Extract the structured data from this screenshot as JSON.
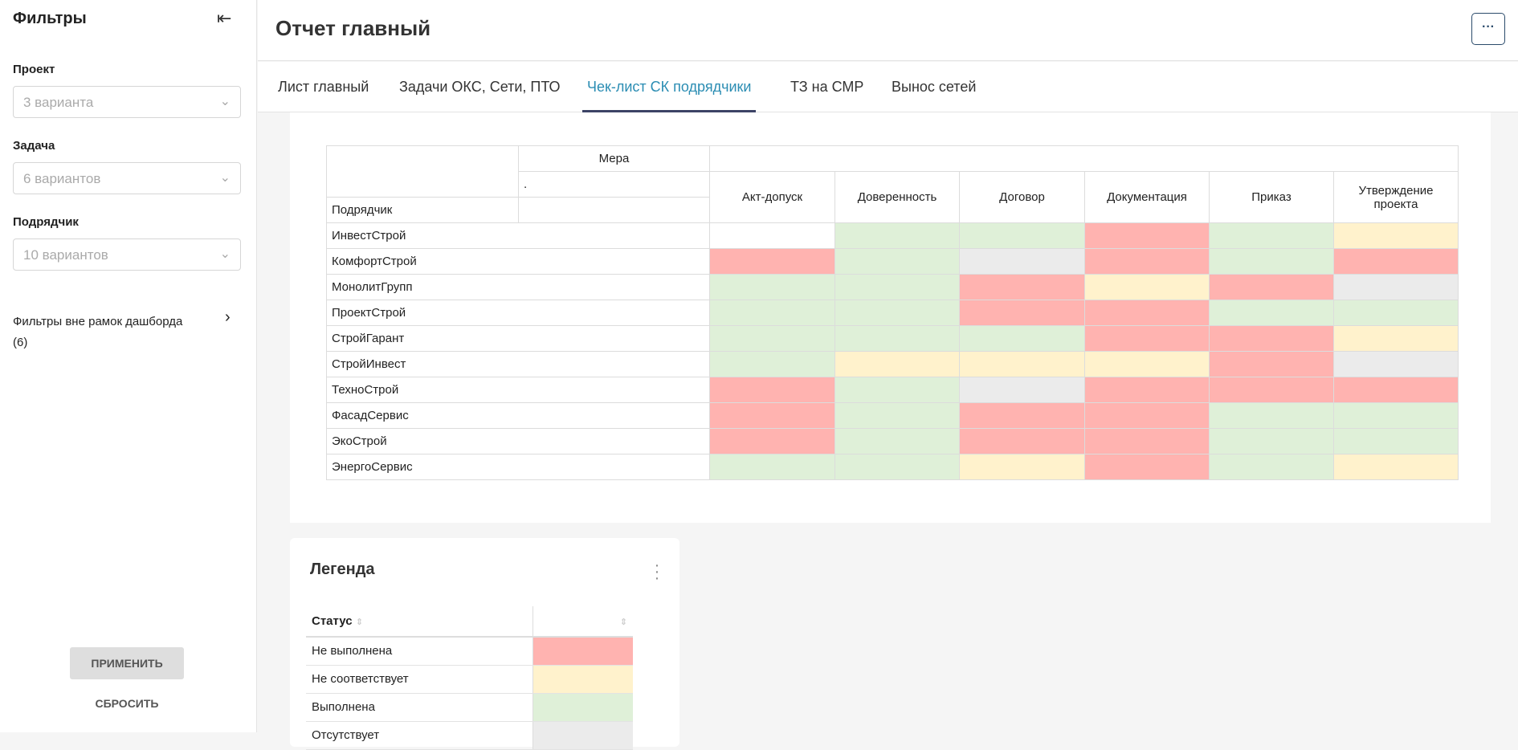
{
  "sidebar": {
    "title": "Фильтры",
    "filters": [
      {
        "label": "Проект",
        "value": "3 варианта"
      },
      {
        "label": "Задача",
        "value": "6 вариантов"
      },
      {
        "label": "Подрядчик",
        "value": "10 вариантов"
      }
    ],
    "outside": "Фильтры вне рамок дашборда",
    "outside_count": "(6)",
    "apply": "ПРИМЕНИТЬ",
    "reset": "СБРОСИТЬ"
  },
  "header": {
    "title": "Отчет главный",
    "more": "···"
  },
  "tabs": [
    "Лист главный",
    "Задачи ОКС, Сети, ПТО",
    "Чек-лист СК подрядчики",
    "ТЗ на СМР",
    "Вынос сетей"
  ],
  "active_tab": "Чек-лист СК подрядчики",
  "colors": {
    "R": "#ffb3b0",
    "Y": "#fff2cc",
    "G": "#dff0d8",
    "E": "#ebebeb",
    "W": "#ffffff"
  },
  "matrix": {
    "measure_label": "Мера",
    "measure_value": ".",
    "row_header": "Подрядчик",
    "columns": [
      "Акт-допуск",
      "Доверенность",
      "Договор",
      "Документация",
      "Приказ",
      "Утверждение проекта"
    ],
    "rows": [
      {
        "name": "ИнвестСтрой",
        "status": [
          "W",
          "G",
          "G",
          "R",
          "G",
          "Y"
        ]
      },
      {
        "name": "КомфортСтрой",
        "status": [
          "R",
          "G",
          "E",
          "R",
          "G",
          "R"
        ]
      },
      {
        "name": "МонолитГрупп",
        "status": [
          "G",
          "G",
          "R",
          "Y",
          "R",
          "E"
        ]
      },
      {
        "name": "ПроектСтрой",
        "status": [
          "G",
          "G",
          "R",
          "R",
          "G",
          "G"
        ]
      },
      {
        "name": "СтройГарант",
        "status": [
          "G",
          "G",
          "G",
          "R",
          "R",
          "Y"
        ]
      },
      {
        "name": "СтройИнвест",
        "status": [
          "G",
          "Y",
          "Y",
          "Y",
          "R",
          "E"
        ]
      },
      {
        "name": "ТехноСтрой",
        "status": [
          "R",
          "G",
          "E",
          "R",
          "R",
          "R"
        ]
      },
      {
        "name": "ФасадСервис",
        "status": [
          "R",
          "G",
          "R",
          "R",
          "G",
          "G"
        ]
      },
      {
        "name": "ЭкоСтрой",
        "status": [
          "R",
          "G",
          "R",
          "R",
          "G",
          "G"
        ]
      },
      {
        "name": "ЭнергоСервис",
        "status": [
          "G",
          "G",
          "Y",
          "R",
          "G",
          "Y"
        ]
      }
    ]
  },
  "legend": {
    "title": "Легенда",
    "column": "Статус",
    "items": [
      {
        "label": "Не выполнена",
        "code": "R"
      },
      {
        "label": "Не соответствует",
        "code": "Y"
      },
      {
        "label": "Выполнена",
        "code": "G"
      },
      {
        "label": "Отсутствует",
        "code": "E"
      }
    ]
  }
}
